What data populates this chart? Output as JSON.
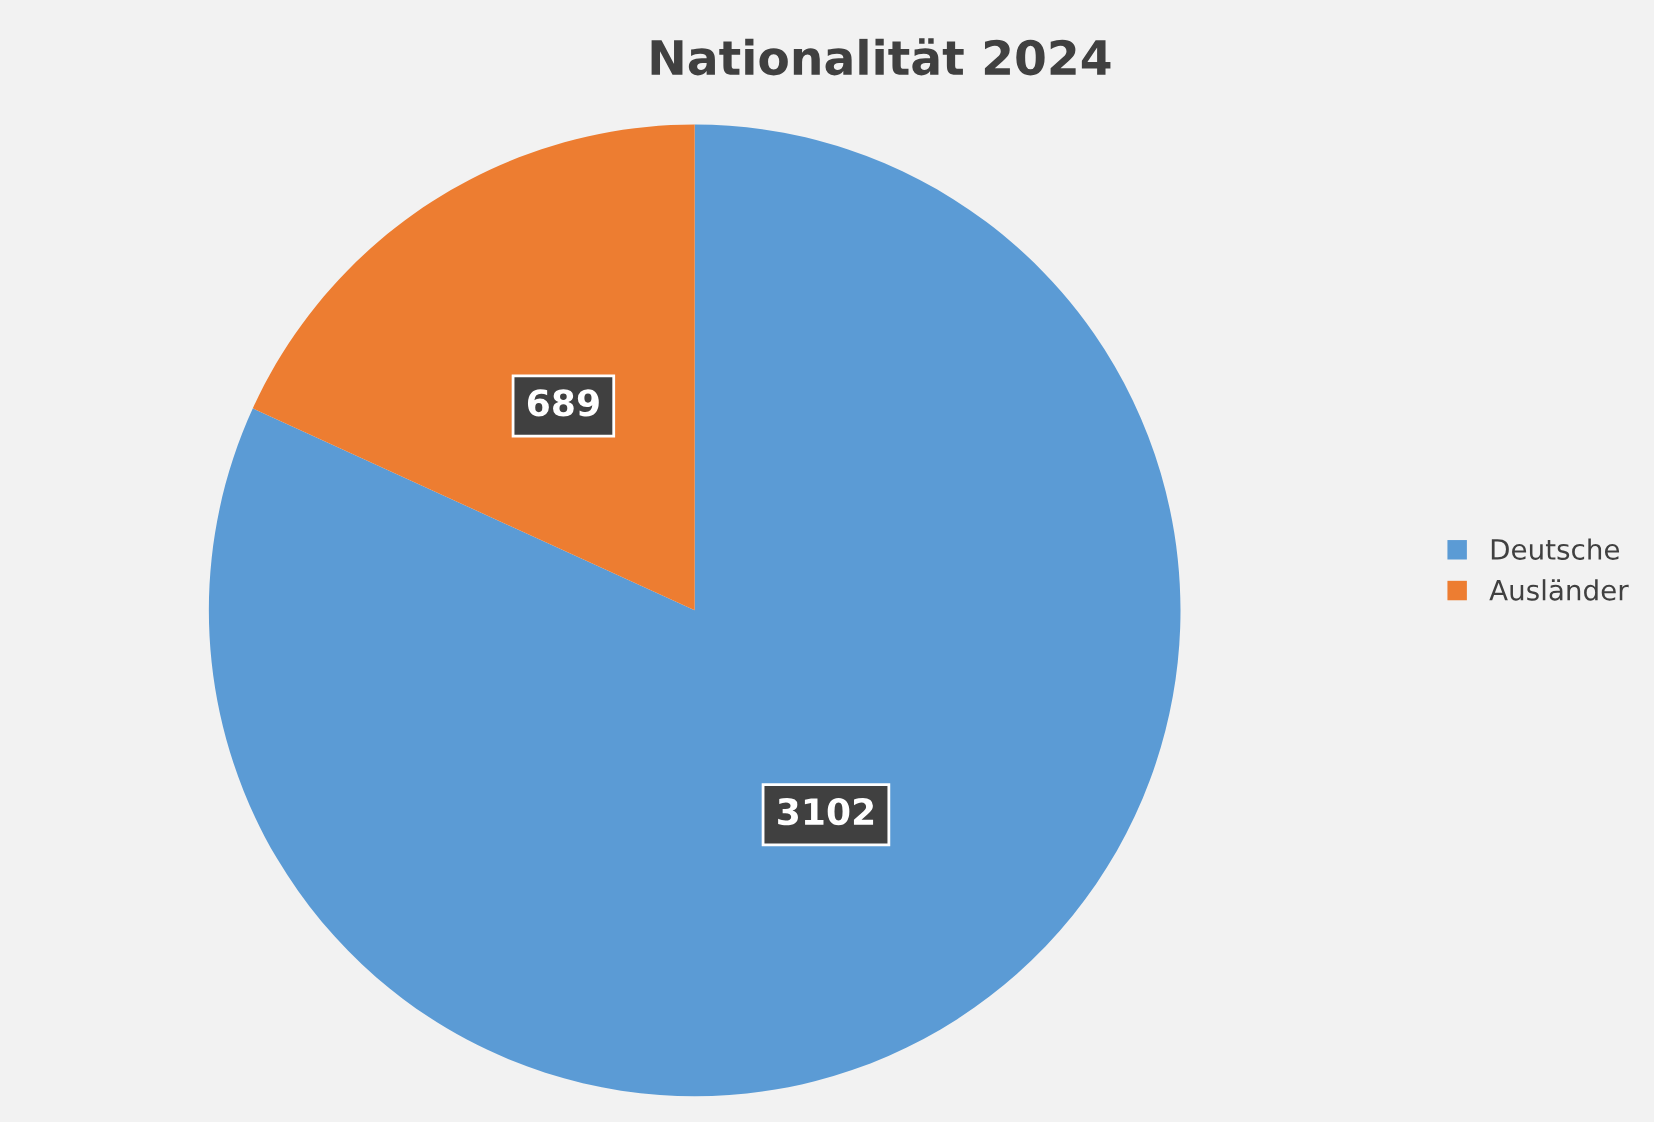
{
  "chart_data": {
    "type": "pie",
    "title": "Nationalität 2024",
    "categories": [
      "Deutsche",
      "Ausländer"
    ],
    "values": [
      3102,
      689
    ],
    "colors": [
      "#5b9bd5",
      "#ed7d31"
    ],
    "data_labels": true,
    "legend": "right"
  }
}
